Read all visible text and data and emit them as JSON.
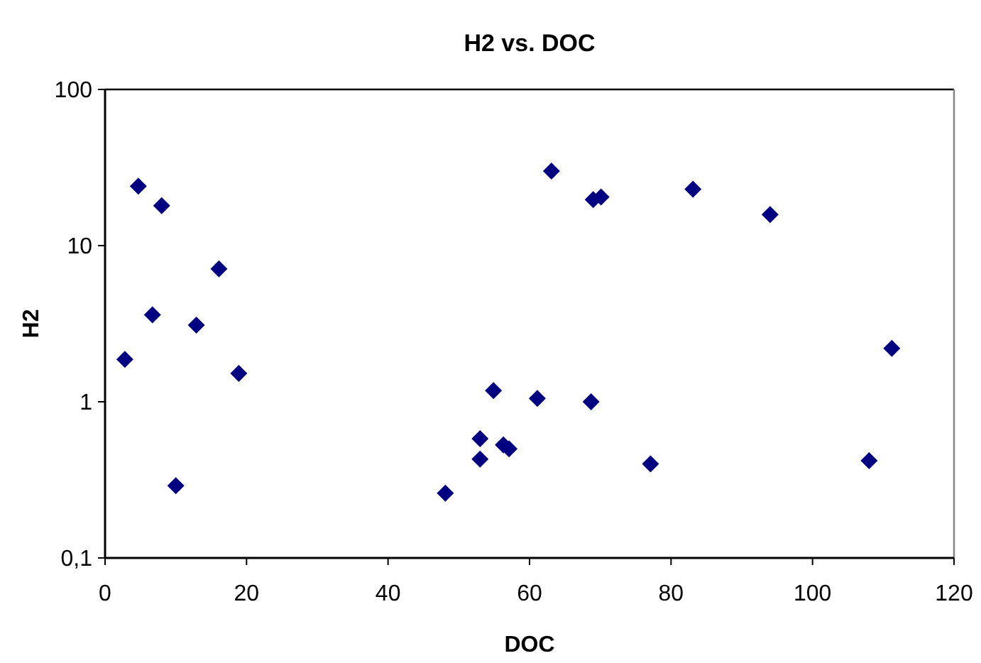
{
  "chart_data": {
    "type": "scatter",
    "title": "H2 vs. DOC",
    "xlabel": "DOC",
    "ylabel": "H2",
    "x": [
      2.8,
      4.7,
      6.7,
      8.0,
      10.0,
      12.9,
      16.1,
      18.9,
      48.1,
      53.0,
      53.0,
      54.9,
      56.3,
      57.1,
      61.1,
      63.1,
      68.7,
      69.0,
      70.1,
      77.1,
      83.1,
      94.0,
      108.0,
      111.2
    ],
    "values": [
      1.87,
      24,
      3.6,
      18,
      0.29,
      3.1,
      7.1,
      1.52,
      0.26,
      0.43,
      0.58,
      1.18,
      0.53,
      0.5,
      1.05,
      30,
      1.0,
      19.7,
      20.5,
      0.4,
      23,
      15.8,
      0.42,
      2.2
    ],
    "color": "#000080",
    "marker": "diamond",
    "log": "y",
    "grid": false,
    "xlim": [
      0,
      120
    ],
    "xticks": [
      0,
      20,
      40,
      60,
      80,
      100,
      120
    ],
    "ylim": [
      0.1,
      100
    ],
    "yticks": [
      {
        "value": 0.1,
        "label": "0,1"
      },
      1,
      10,
      100
    ]
  }
}
